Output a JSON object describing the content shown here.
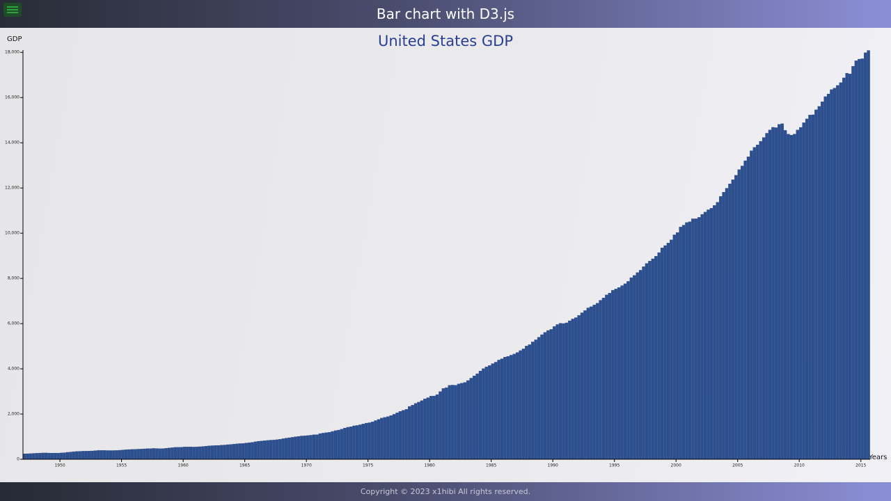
{
  "header": {
    "title": "Bar chart with D3.js"
  },
  "footer": {
    "text": "Copyright © 2023 x1hibi All rights reserved."
  },
  "chart_data": {
    "type": "bar",
    "title": "United States GDP",
    "y_label": "GDP",
    "x_label": "Years",
    "color": "#2b4f8f",
    "xlim": [
      1947,
      2015.75
    ],
    "xticks": [
      1950,
      1955,
      1960,
      1965,
      1970,
      1975,
      1980,
      1985,
      1990,
      1995,
      2000,
      2005,
      2010,
      2015
    ],
    "ylim": [
      0,
      18100
    ],
    "yticks": [
      0,
      {
        "value": 2000,
        "label": "2,000"
      },
      {
        "value": 4000,
        "label": "4,000"
      },
      {
        "value": 6000,
        "label": "6,000"
      },
      {
        "value": 8000,
        "label": "8,000"
      },
      {
        "value": 10000,
        "label": "10,000"
      },
      {
        "value": 12000,
        "label": "12,000"
      },
      {
        "value": 14000,
        "label": "14,000"
      },
      {
        "value": 16000,
        "label": "16,000"
      },
      {
        "value": 18000,
        "label": "18,000"
      }
    ],
    "x": [
      1947,
      1947.25,
      1947.5,
      1947.75,
      1948,
      1948.25,
      1948.5,
      1948.75,
      1949,
      1949.25,
      1949.5,
      1949.75,
      1950,
      1950.25,
      1950.5,
      1950.75,
      1951,
      1951.25,
      1951.5,
      1951.75,
      1952,
      1952.25,
      1952.5,
      1952.75,
      1953,
      1953.25,
      1953.5,
      1953.75,
      1954,
      1954.25,
      1954.5,
      1954.75,
      1955,
      1955.25,
      1955.5,
      1955.75,
      1956,
      1956.25,
      1956.5,
      1956.75,
      1957,
      1957.25,
      1957.5,
      1957.75,
      1958,
      1958.25,
      1958.5,
      1958.75,
      1959,
      1959.25,
      1959.5,
      1959.75,
      1960,
      1960.25,
      1960.5,
      1960.75,
      1961,
      1961.25,
      1961.5,
      1961.75,
      1962,
      1962.25,
      1962.5,
      1962.75,
      1963,
      1963.25,
      1963.5,
      1963.75,
      1964,
      1964.25,
      1964.5,
      1964.75,
      1965,
      1965.25,
      1965.5,
      1965.75,
      1966,
      1966.25,
      1966.5,
      1966.75,
      1967,
      1967.25,
      1967.5,
      1967.75,
      1968,
      1968.25,
      1968.5,
      1968.75,
      1969,
      1969.25,
      1969.5,
      1969.75,
      1970,
      1970.25,
      1970.5,
      1970.75,
      1971,
      1971.25,
      1971.5,
      1971.75,
      1972,
      1972.25,
      1972.5,
      1972.75,
      1973,
      1973.25,
      1973.5,
      1973.75,
      1974,
      1974.25,
      1974.5,
      1974.75,
      1975,
      1975.25,
      1975.5,
      1975.75,
      1976,
      1976.25,
      1976.5,
      1976.75,
      1977,
      1977.25,
      1977.5,
      1977.75,
      1978,
      1978.25,
      1978.5,
      1978.75,
      1979,
      1979.25,
      1979.5,
      1979.75,
      1980,
      1980.25,
      1980.5,
      1980.75,
      1981,
      1981.25,
      1981.5,
      1981.75,
      1982,
      1982.25,
      1982.5,
      1982.75,
      1983,
      1983.25,
      1983.5,
      1983.75,
      1984,
      1984.25,
      1984.5,
      1984.75,
      1985,
      1985.25,
      1985.5,
      1985.75,
      1986,
      1986.25,
      1986.5,
      1986.75,
      1987,
      1987.25,
      1987.5,
      1987.75,
      1988,
      1988.25,
      1988.5,
      1988.75,
      1989,
      1989.25,
      1989.5,
      1989.75,
      1990,
      1990.25,
      1990.5,
      1990.75,
      1991,
      1991.25,
      1991.5,
      1991.75,
      1992,
      1992.25,
      1992.5,
      1992.75,
      1993,
      1993.25,
      1993.5,
      1993.75,
      1994,
      1994.25,
      1994.5,
      1994.75,
      1995,
      1995.25,
      1995.5,
      1995.75,
      1996,
      1996.25,
      1996.5,
      1996.75,
      1997,
      1997.25,
      1997.5,
      1997.75,
      1998,
      1998.25,
      1998.5,
      1998.75,
      1999,
      1999.25,
      1999.5,
      1999.75,
      2000,
      2000.25,
      2000.5,
      2000.75,
      2001,
      2001.25,
      2001.5,
      2001.75,
      2002,
      2002.25,
      2002.5,
      2002.75,
      2003,
      2003.25,
      2003.5,
      2003.75,
      2004,
      2004.25,
      2004.5,
      2004.75,
      2005,
      2005.25,
      2005.5,
      2005.75,
      2006,
      2006.25,
      2006.5,
      2006.75,
      2007,
      2007.25,
      2007.5,
      2007.75,
      2008,
      2008.25,
      2008.5,
      2008.75,
      2009,
      2009.25,
      2009.5,
      2009.75,
      2010,
      2010.25,
      2010.5,
      2010.75,
      2011,
      2011.25,
      2011.5,
      2011.75,
      2012,
      2012.25,
      2012.5,
      2012.75,
      2013,
      2013.25,
      2013.5,
      2013.75,
      2014,
      2014.25,
      2014.5,
      2014.75,
      2015,
      2015.25,
      2015.5
    ],
    "values": [
      243,
      246,
      250,
      260,
      266,
      273,
      280,
      280,
      275,
      271,
      273,
      271,
      281,
      290,
      308,
      320,
      336,
      344,
      351,
      356,
      360,
      361,
      368,
      381,
      389,
      392,
      391,
      386,
      385,
      386,
      391,
      399,
      413,
      421,
      430,
      437,
      440,
      447,
      451,
      461,
      470,
      472,
      480,
      475,
      468,
      472,
      486,
      500,
      512,
      526,
      528,
      533,
      545,
      545,
      547,
      541,
      545,
      555,
      567,
      580,
      594,
      601,
      609,
      612,
      622,
      631,
      645,
      654,
      671,
      681,
      693,
      700,
      719,
      732,
      750,
      773,
      797,
      807,
      820,
      834,
      846,
      851,
      866,
      884,
      911,
      936,
      953,
      971,
      995,
      1010,
      1030,
      1037,
      1049,
      1064,
      1084,
      1088,
      1136,
      1156,
      1177,
      1191,
      1231,
      1266,
      1291,
      1330,
      1380,
      1417,
      1437,
      1479,
      1495,
      1526,
      1561,
      1599,
      1617,
      1652,
      1710,
      1762,
      1820,
      1852,
      1886,
      1934,
      1988,
      2056,
      2118,
      2165,
      2209,
      2337,
      2396,
      2471,
      2527,
      2592,
      2669,
      2723,
      2796,
      2799,
      2860,
      2993,
      3131,
      3168,
      3270,
      3281,
      3274,
      3332,
      3367,
      3398,
      3481,
      3587,
      3688,
      3784,
      3906,
      4009,
      4084,
      4148,
      4231,
      4295,
      4389,
      4445,
      4519,
      4553,
      4604,
      4655,
      4722,
      4806,
      4884,
      5008,
      5073,
      5191,
      5283,
      5399,
      5511,
      5613,
      5696,
      5747,
      5873,
      5960,
      6016,
      6004,
      6035,
      6126,
      6206,
      6264,
      6364,
      6480,
      6578,
      6696,
      6748,
      6830,
      6905,
      7033,
      7137,
      7270,
      7352,
      7477,
      7533,
      7599,
      7680,
      7764,
      7868,
      8033,
      8131,
      8259,
      8362,
      8518,
      8663,
      8768,
      8867,
      8983,
      9142,
      9351,
      9452,
      9567,
      9707,
      9928,
      10031,
      10278,
      10357,
      10472,
      10508,
      10638,
      10639,
      10701,
      10834,
      10934,
      11037,
      11104,
      11231,
      11370,
      11626,
      11816,
      11989,
      12182,
      12367,
      12562,
      12814,
      12975,
      13205,
      13382,
      13649,
      13799,
      13909,
      14067,
      14234,
      14423,
      14569,
      14685,
      14669,
      14817,
      14844,
      14549,
      14384,
      14341,
      14385,
      14567,
      14682,
      14888,
      15057,
      15231,
      15238,
      15461,
      15611,
      15818,
      16042,
      16160,
      16356,
      16420,
      16536,
      16664,
      16872,
      17079,
      17045,
      17386,
      17629,
      17700,
      17718,
      17984,
      18084
    ]
  }
}
